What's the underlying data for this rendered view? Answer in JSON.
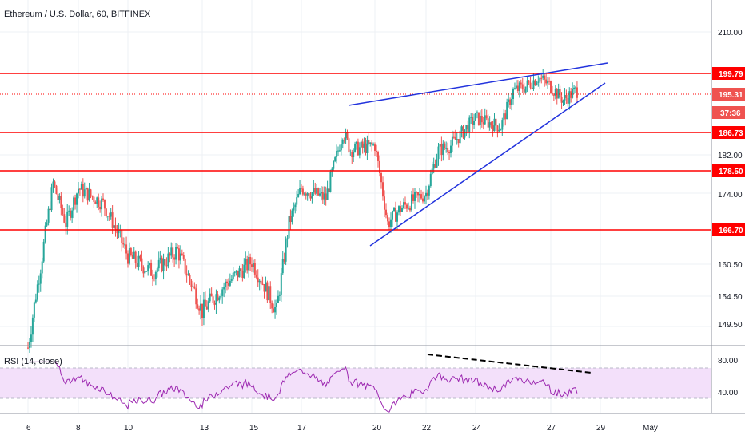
{
  "symbol_title": "Ethereum / U.S. Dollar, 60, BITFINEX",
  "colors": {
    "up": "#26a69a",
    "down": "#ef5350",
    "support_line": "#ff0000",
    "trend_line": "#2233dd",
    "rsi_line": "#9c27b0",
    "rsi_band": "#f3e0fa",
    "grid": "#edf0f4"
  },
  "price_axis": {
    "ticks": [
      "210.00",
      "182.00",
      "174.00",
      "160.50",
      "154.50",
      "149.50"
    ],
    "badges": [
      {
        "label": "199.79",
        "style": "solid"
      },
      {
        "label": "195.31",
        "style": "last"
      },
      {
        "label": "37:36",
        "style": "countdown"
      },
      {
        "label": "186.73",
        "style": "solid"
      },
      {
        "label": "178.50",
        "style": "solid"
      },
      {
        "label": "166.70",
        "style": "solid"
      }
    ]
  },
  "time_axis": {
    "ticks": [
      "6",
      "8",
      "10",
      "13",
      "15",
      "17",
      "20",
      "22",
      "24",
      "27",
      "29",
      "May"
    ]
  },
  "rsi": {
    "label": "RSI (14, close)",
    "ticks": [
      "80.00",
      "40.00"
    ]
  },
  "chart_data": {
    "type": "candlestick",
    "title": "Ethereum / U.S. Dollar, 60, BITFINEX",
    "timeframe": "60",
    "exchange": "BITFINEX",
    "x_ticks": [
      "6",
      "8",
      "10",
      "13",
      "15",
      "17",
      "20",
      "22",
      "24",
      "27",
      "29",
      "May"
    ],
    "y_ticks": [
      149.5,
      154.5,
      160.5,
      174.0,
      182.0,
      210.0
    ],
    "last_price": 195.31,
    "horizontal_levels": [
      199.79,
      186.73,
      178.5,
      166.7
    ],
    "dotted_level": 195.31,
    "rsi": {
      "period": 14,
      "source": "close",
      "upper_band": 80,
      "lower_band": 40
    },
    "price_path_keypoints": [
      {
        "day": 6,
        "price": 146
      },
      {
        "day": 6.5,
        "price": 160
      },
      {
        "day": 7,
        "price": 176
      },
      {
        "day": 7.5,
        "price": 168
      },
      {
        "day": 8,
        "price": 175
      },
      {
        "day": 9,
        "price": 172
      },
      {
        "day": 10,
        "price": 162
      },
      {
        "day": 11,
        "price": 159
      },
      {
        "day": 12,
        "price": 163
      },
      {
        "day": 13,
        "price": 152
      },
      {
        "day": 14,
        "price": 157
      },
      {
        "day": 15,
        "price": 161
      },
      {
        "day": 16,
        "price": 152
      },
      {
        "day": 16.5,
        "price": 168
      },
      {
        "day": 17,
        "price": 175
      },
      {
        "day": 18,
        "price": 173
      },
      {
        "day": 18.7,
        "price": 187
      },
      {
        "day": 19,
        "price": 183
      },
      {
        "day": 20,
        "price": 184
      },
      {
        "day": 20.5,
        "price": 168
      },
      {
        "day": 21,
        "price": 171
      },
      {
        "day": 22,
        "price": 174
      },
      {
        "day": 22.5,
        "price": 183
      },
      {
        "day": 23,
        "price": 184
      },
      {
        "day": 24,
        "price": 190
      },
      {
        "day": 25,
        "price": 188
      },
      {
        "day": 25.5,
        "price": 196
      },
      {
        "day": 26,
        "price": 197
      },
      {
        "day": 26.5,
        "price": 199
      },
      {
        "day": 27,
        "price": 197
      },
      {
        "day": 27.5,
        "price": 194
      },
      {
        "day": 28,
        "price": 196
      }
    ]
  }
}
